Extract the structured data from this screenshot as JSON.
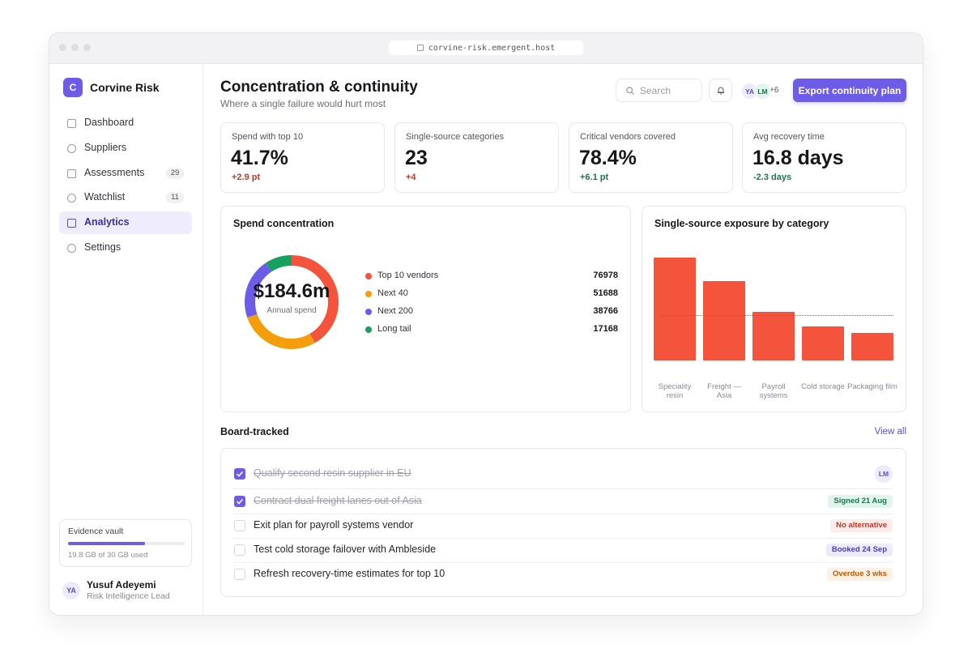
{
  "browser": {
    "url": "corvine-risk.emergent.host"
  },
  "sidebar": {
    "logo": "C",
    "brand": "Corvine Risk",
    "nav": [
      {
        "label": "Dashboard"
      },
      {
        "label": "Suppliers"
      },
      {
        "label": "Assessments",
        "badge": 29
      },
      {
        "label": "Watchlist",
        "badge": 11
      },
      {
        "label": "Analytics",
        "active": true
      },
      {
        "label": "Settings"
      }
    ],
    "vault": {
      "title": "Evidence vault",
      "usage": "19.8 GB of 30 GB used",
      "used": 19.8,
      "capacity": 30
    },
    "user": {
      "initials": "YA",
      "name": "Yusuf Adeyemi",
      "role": "Risk Intelligence Lead"
    }
  },
  "header": {
    "title": "Concentration & continuity",
    "subtitle": "Where a single failure would hurt most",
    "search": "Search",
    "avatars": [
      "YA",
      "LM"
    ],
    "more": "+6",
    "button": "Export continuity plan"
  },
  "kpis": [
    {
      "label": "Spend with top 10",
      "value": "41.7%",
      "delta": "+2.9 pt",
      "tone": "bad"
    },
    {
      "label": "Single-source categories",
      "value": "23",
      "delta": "+4",
      "tone": "bad"
    },
    {
      "label": "Critical vendors covered",
      "value": "78.4%",
      "delta": "+6.1 pt",
      "tone": "good"
    },
    {
      "label": "Avg recovery time",
      "value": "16.8 days",
      "delta": "-2.3 days",
      "tone": "good"
    }
  ],
  "chart_data": [
    {
      "type": "donut",
      "title": "Spend concentration",
      "center_label": "$184.6m",
      "center_sublabel": "Annual spend",
      "categories": [
        "Top 10 vendors",
        "Next 40",
        "Next 200",
        "Long tail"
      ],
      "values": [
        76978,
        51688,
        38766,
        17168
      ],
      "colors": [
        "#f4533c",
        "#f59e0b",
        "#6c5ce7",
        "#16a061"
      ]
    },
    {
      "type": "bar",
      "title": "Single-source exposure by category",
      "categories": [
        "Speciality resin",
        "Freight — Asia",
        "Payroll systems",
        "Cold storage",
        "Packaging film"
      ],
      "values": [
        127,
        98,
        60,
        42,
        34
      ],
      "color": "#f4533c",
      "ylim": [
        0,
        130
      ],
      "reference": 56
    }
  ],
  "board": {
    "title": "Board-tracked",
    "link": "View all",
    "items": [
      {
        "text": "Qualify second resin supplier in EU",
        "done": true,
        "tag": "LM",
        "tone": "avatar"
      },
      {
        "text": "Contract dual freight lanes out of Asia",
        "done": true,
        "tag": "Signed 21 Aug",
        "tone": "green"
      },
      {
        "text": "Exit plan for payroll systems vendor",
        "done": false,
        "tag": "No alternative",
        "tone": "red"
      },
      {
        "text": "Test cold storage failover with Ambleside",
        "done": false,
        "tag": "Booked 24 Sep",
        "tone": "purple"
      },
      {
        "text": "Refresh recovery-time estimates for top 10",
        "done": false,
        "tag": "Overdue 3 wks",
        "tone": "orange"
      }
    ]
  }
}
